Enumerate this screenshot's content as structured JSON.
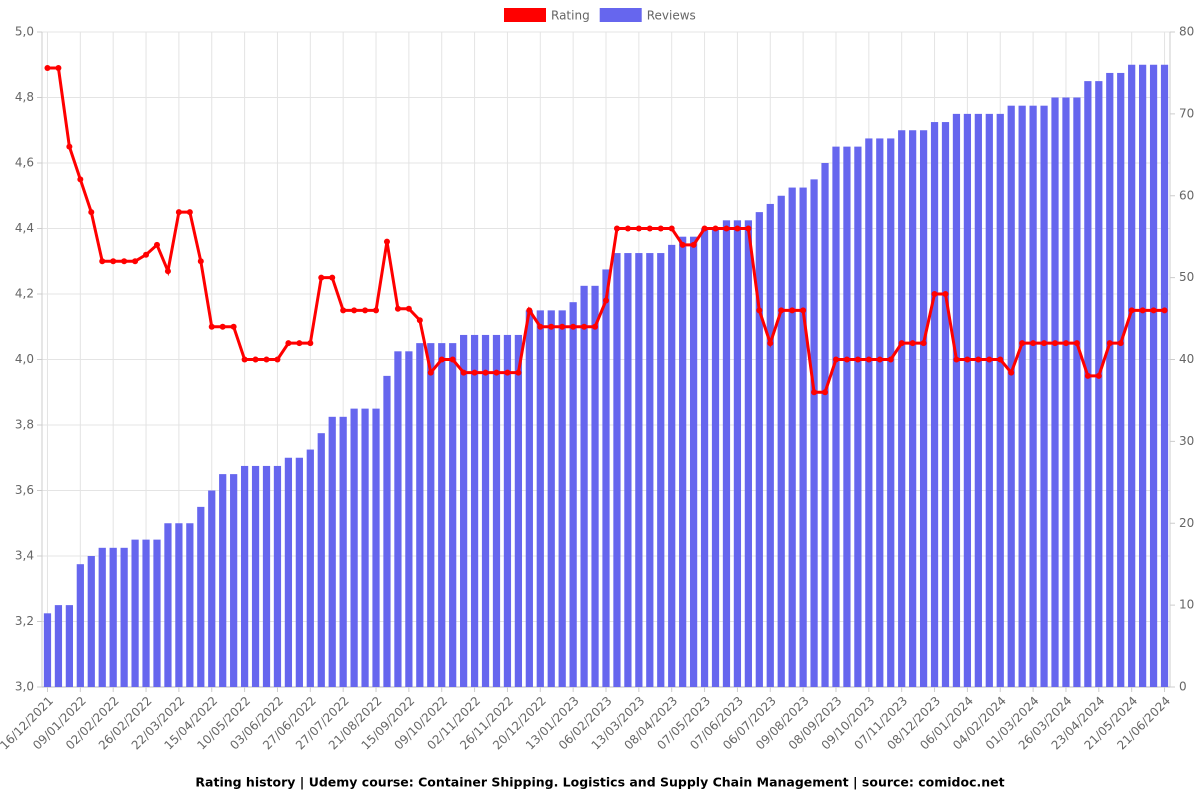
{
  "chart_data": {
    "type": "bar",
    "title": "Rating history | Udemy course: Container Shipping. Logistics and Supply Chain Management | source: comidoc.net",
    "categories": [
      "16/12/2021",
      null,
      null,
      "09/01/2022",
      null,
      null,
      "02/02/2022",
      null,
      null,
      "26/02/2022",
      null,
      null,
      "22/03/2022",
      null,
      null,
      "15/04/2022",
      null,
      null,
      "10/05/2022",
      null,
      null,
      "03/06/2022",
      null,
      null,
      "27/06/2022",
      null,
      null,
      "27/07/2022",
      null,
      null,
      "21/08/2022",
      null,
      null,
      "15/09/2022",
      null,
      null,
      "09/10/2022",
      null,
      null,
      "02/11/2022",
      null,
      null,
      "26/11/2022",
      null,
      null,
      "20/12/2022",
      null,
      null,
      "13/01/2023",
      null,
      null,
      "06/02/2023",
      null,
      null,
      "13/03/2023",
      null,
      null,
      "08/04/2023",
      null,
      null,
      "07/05/2023",
      null,
      null,
      "07/06/2023",
      null,
      null,
      "06/07/2023",
      null,
      null,
      "09/08/2023",
      null,
      null,
      "08/09/2023",
      null,
      null,
      "09/10/2023",
      null,
      null,
      "07/11/2023",
      null,
      null,
      "08/12/2023",
      null,
      null,
      "06/01/2024",
      null,
      null,
      "04/02/2024",
      null,
      null,
      "01/03/2024",
      null,
      null,
      "26/03/2024",
      null,
      null,
      "23/04/2024",
      null,
      null,
      "21/05/2024",
      null,
      null,
      "21/06/2024"
    ],
    "series": [
      {
        "name": "Rating",
        "type": "line",
        "color": "#ff0000",
        "values": [
          4.89,
          4.89,
          4.65,
          4.55,
          4.45,
          4.3,
          4.3,
          4.3,
          4.3,
          4.32,
          4.35,
          4.27,
          4.45,
          4.45,
          4.3,
          4.1,
          4.1,
          4.1,
          4.0,
          4.0,
          4.0,
          4.0,
          4.05,
          4.05,
          4.05,
          4.25,
          4.25,
          4.15,
          4.15,
          4.15,
          4.15,
          4.36,
          4.155,
          4.155,
          4.12,
          3.96,
          4.0,
          4.0,
          3.96,
          3.96,
          3.96,
          3.96,
          3.96,
          3.96,
          4.15,
          4.1,
          4.1,
          4.1,
          4.1,
          4.1,
          4.1,
          4.18,
          4.4,
          4.4,
          4.4,
          4.4,
          4.4,
          4.4,
          4.35,
          4.35,
          4.4,
          4.4,
          4.4,
          4.4,
          4.4,
          4.15,
          4.05,
          4.15,
          4.15,
          4.15,
          3.9,
          3.9,
          4.0,
          4.0,
          4.0,
          4.0,
          4.0,
          4.0,
          4.05,
          4.05,
          4.05,
          4.2,
          4.2,
          4.0,
          4.0,
          4.0,
          4.0,
          4.0,
          3.96,
          4.05,
          4.05,
          4.05,
          4.05,
          4.05,
          4.05,
          3.95,
          3.95,
          4.05,
          4.05,
          4.15,
          4.15,
          4.15,
          4.15
        ]
      },
      {
        "name": "Reviews",
        "type": "bar",
        "axis": "y2",
        "color": "#6666ee",
        "values": [
          9,
          10,
          10,
          15,
          16,
          17,
          17,
          17,
          18,
          18,
          18,
          20,
          20,
          20,
          22,
          24,
          26,
          26,
          27,
          27,
          27,
          27,
          28,
          28,
          29,
          31,
          33,
          33,
          34,
          34,
          34,
          38,
          41,
          41,
          42,
          42,
          42,
          42,
          43,
          43,
          43,
          43,
          43,
          43,
          46,
          46,
          46,
          46,
          47,
          49,
          49,
          51,
          53,
          53,
          53,
          53,
          53,
          54,
          55,
          55,
          56,
          56,
          57,
          57,
          57,
          58,
          59,
          60,
          61,
          61,
          62,
          64,
          66,
          66,
          66,
          67,
          67,
          67,
          68,
          68,
          68,
          69,
          69,
          70,
          70,
          70,
          70,
          70,
          71,
          71,
          71,
          71,
          72,
          72,
          72,
          74,
          74,
          75,
          75,
          76,
          76,
          76,
          76
        ]
      }
    ],
    "ylim": [
      3.0,
      5.0
    ],
    "yticks": [
      {
        "value": 3.0,
        "label": "3,0"
      },
      {
        "value": 3.2,
        "label": "3,2"
      },
      {
        "value": 3.4,
        "label": "3,4"
      },
      {
        "value": 3.6,
        "label": "3,6"
      },
      {
        "value": 3.8,
        "label": "3,8"
      },
      {
        "value": 4.0,
        "label": "4,0"
      },
      {
        "value": 4.2,
        "label": "4,2"
      },
      {
        "value": 4.4,
        "label": "4,4"
      },
      {
        "value": 4.6,
        "label": "4,6"
      },
      {
        "value": 4.8,
        "label": "4,8"
      },
      {
        "value": 5.0,
        "label": "5,0"
      }
    ],
    "y2lim": [
      0,
      80
    ],
    "y2ticks": [
      0,
      10,
      20,
      30,
      40,
      50,
      60,
      70,
      80
    ],
    "grid": true,
    "legend": "top"
  }
}
